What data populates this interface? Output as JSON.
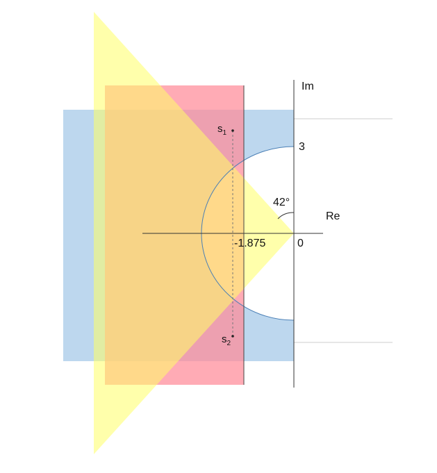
{
  "axes": {
    "re_label": "Re",
    "im_label": "Im",
    "origin_label": "0",
    "im_value_label": "3"
  },
  "markers": {
    "real_value_label": "-1.875",
    "angle_label": "42°"
  },
  "poles": {
    "s1": {
      "symbol": "s",
      "subscript": "1"
    },
    "s2": {
      "symbol": "s",
      "subscript": "2"
    }
  },
  "regions": {
    "blue_color": "#bdd7ee",
    "red_color": "#ff99a6",
    "yellow_color": "#ffff99",
    "circle_edge_color": "#4a7fb5"
  }
}
